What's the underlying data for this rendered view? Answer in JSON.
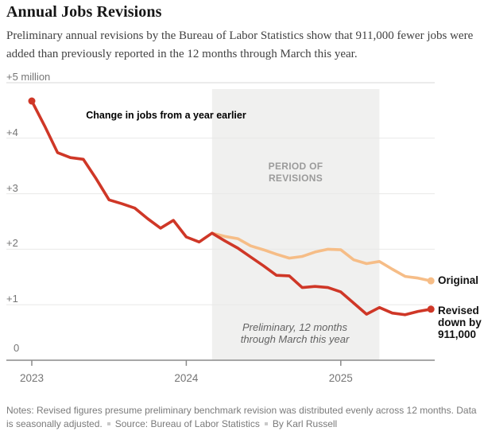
{
  "header": {
    "title": "Annual Jobs Revisions",
    "subtitle": "Preliminary annual revisions by the Bureau of Labor Statistics show that 911,000 fewer jobs were added than previously reported in the 12 months through March this year."
  },
  "chart_data": {
    "type": "line",
    "title": "Annual Jobs Revisions",
    "unit": "millions of jobs",
    "annotation": "Change in jobs from a year earlier",
    "x": [
      "2023-01",
      "2023-02",
      "2023-03",
      "2023-04",
      "2023-05",
      "2023-06",
      "2023-07",
      "2023-08",
      "2023-09",
      "2023-10",
      "2023-11",
      "2023-12",
      "2024-01",
      "2024-02",
      "2024-03",
      "2024-04",
      "2024-05",
      "2024-06",
      "2024-07",
      "2024-08",
      "2024-09",
      "2024-10",
      "2024-11",
      "2024-12",
      "2025-01",
      "2025-02",
      "2025-03",
      "2025-04",
      "2025-05",
      "2025-06",
      "2025-07",
      "2025-08"
    ],
    "series": [
      {
        "name": "Original",
        "color": "#f6bd87",
        "start_index": 14,
        "values": [
          2.29,
          2.23,
          2.19,
          2.06,
          1.99,
          1.91,
          1.84,
          1.87,
          1.95,
          2.0,
          1.99,
          1.81,
          1.74,
          1.78,
          1.64,
          1.51,
          1.48,
          1.43
        ]
      },
      {
        "name": "Revised",
        "color": "#cf3727",
        "start_index": 0,
        "values": [
          4.67,
          4.22,
          3.74,
          3.65,
          3.62,
          3.27,
          2.89,
          2.82,
          2.74,
          2.55,
          2.38,
          2.52,
          2.22,
          2.13,
          2.29,
          2.15,
          2.02,
          1.86,
          1.7,
          1.53,
          1.52,
          1.31,
          1.33,
          1.31,
          1.23,
          1.03,
          0.83,
          0.95,
          0.85,
          0.82,
          0.88,
          0.92
        ]
      }
    ],
    "y_axis": {
      "range": [
        0,
        5
      ],
      "ticks": [
        {
          "value": 5,
          "label": "+5 million"
        },
        {
          "value": 4,
          "label": "+4"
        },
        {
          "value": 3,
          "label": "+3"
        },
        {
          "value": 2,
          "label": "+2"
        },
        {
          "value": 1,
          "label": "+1"
        },
        {
          "value": 0,
          "label": "0"
        }
      ]
    },
    "x_axis": {
      "ticks": [
        {
          "index": 0,
          "label": "2023"
        },
        {
          "index": 12,
          "label": "2024"
        },
        {
          "index": 24,
          "label": "2025"
        }
      ]
    },
    "revision_band": {
      "label": "PERIOD OF REVISIONS",
      "start_index": 14,
      "end_index": 27,
      "color": "#f0f0ef",
      "note": "Preliminary, 12 months through March this year"
    },
    "legend": {
      "original_label": "Original",
      "revised_label": "Revised down by 911,000"
    },
    "grid": "horizontal",
    "legend_position": "right-of-line-ends"
  },
  "footer": {
    "notes": "Notes: Revised figures presume preliminary benchmark revision was distributed evenly across 12 months. Data is seasonally adjusted.",
    "source": "Source: Bureau of Labor Statistics",
    "byline": "By Karl Russell"
  }
}
